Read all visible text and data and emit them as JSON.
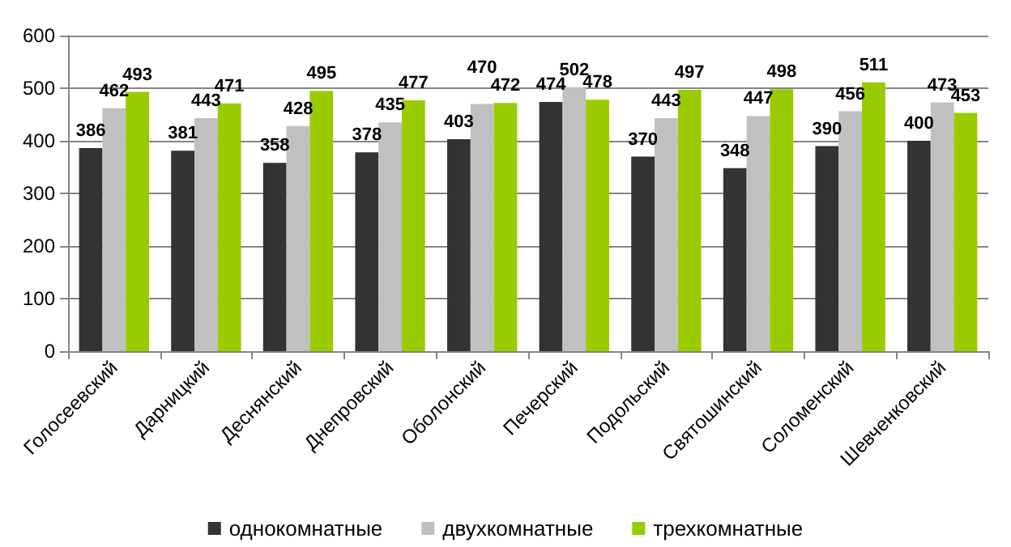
{
  "chart_data": {
    "type": "bar",
    "categories": [
      "Голосеевский",
      "Дарницкий",
      "Деснянский",
      "Днепровский",
      "Оболонский",
      "Печерский",
      "Подольский",
      "Святошинский",
      "Соломенский",
      "Шевченковский"
    ],
    "series": [
      {
        "name": "однокомнатные",
        "color": "#333333",
        "values": [
          386,
          381,
          358,
          378,
          403,
          474,
          370,
          348,
          390,
          400
        ]
      },
      {
        "name": "двухкомнатные",
        "color": "#c0c0c0",
        "values": [
          462,
          443,
          428,
          435,
          470,
          502,
          443,
          447,
          456,
          473
        ]
      },
      {
        "name": "трехкомнатные",
        "color": "#99cc00",
        "values": [
          493,
          471,
          495,
          477,
          472,
          478,
          497,
          498,
          511,
          453
        ]
      }
    ],
    "ylim": [
      0,
      600
    ],
    "yticks": [
      0,
      100,
      200,
      300,
      400,
      500,
      600
    ],
    "grid": "y",
    "legend": "bottom",
    "data_labels": true
  }
}
